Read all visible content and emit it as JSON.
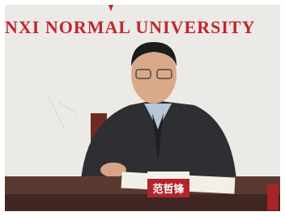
{
  "wall_text": "NXI NORMAL UNIVERSITY",
  "name_plate": "范哲锋"
}
